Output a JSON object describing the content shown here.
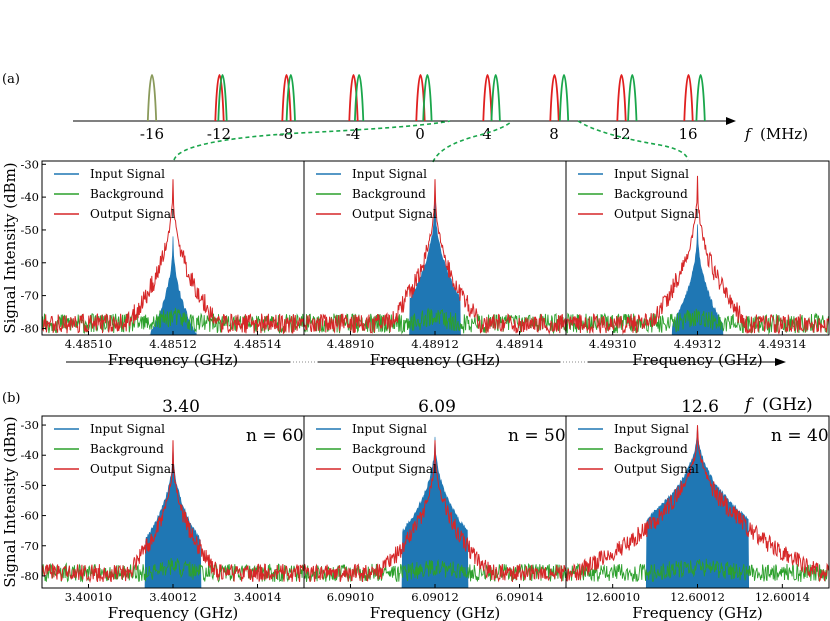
{
  "figure": {
    "panel_a_label": "(a)",
    "panel_b_label": "(b)",
    "y_axis_title": "Signal Intensity (dBm)",
    "x_axis_title": "Frequency (GHz)"
  },
  "chart_data": [
    {
      "id": "comb-a",
      "type": "comb",
      "axis_label": "f",
      "axis_unit": "(MHz)",
      "ticks": [
        "-16",
        "-12",
        "-8",
        "-4",
        "0",
        "4",
        "8",
        "12",
        "16"
      ],
      "tick_values": [
        -16,
        -12,
        -8,
        -4,
        0,
        4,
        8,
        12,
        16
      ],
      "red_peaks": [
        -12,
        -8,
        -4,
        0,
        4,
        8,
        12,
        16
      ],
      "green_peaks": [
        -12,
        -8,
        -4,
        0,
        4,
        8,
        12,
        16
      ],
      "olive_peaks": [
        -16
      ],
      "colors": {
        "red": "#e02020",
        "green": "#1aa64b",
        "olive": "#8a9a5b",
        "link": "#1aa64b"
      }
    },
    {
      "id": "a1",
      "type": "line",
      "title": "",
      "xlabel": "Frequency (GHz)",
      "ylabel": "Signal Intensity (dBm)",
      "xticks": [
        "4.48510",
        "4.48512",
        "4.48514"
      ],
      "xtick_values": [
        4.4851,
        4.48512,
        4.48514
      ],
      "xlim": [
        4.485089,
        4.485151
      ],
      "ylim": [
        -82,
        -29
      ],
      "yticks": [
        -30,
        -40,
        -50,
        -60,
        -70,
        -80
      ],
      "center": 4.48512,
      "peak_input": -52,
      "peak_output": -34,
      "bg_level": -78.5,
      "bw_w": 5.5e-06,
      "annotation": "",
      "series": [
        {
          "name": "Input Signal",
          "color": "#1f77b4"
        },
        {
          "name": "Background",
          "color": "#2ca02c"
        },
        {
          "name": "Output Signal",
          "color": "#d62728"
        }
      ]
    },
    {
      "id": "a2",
      "type": "line",
      "title": "",
      "xlabel": "Frequency (GHz)",
      "ylabel": "",
      "xticks": [
        "4.48910",
        "4.48912",
        "4.48914"
      ],
      "xtick_values": [
        4.4891,
        4.48912,
        4.48914
      ],
      "xlim": [
        4.489089,
        4.489151
      ],
      "ylim": [
        -82,
        -29
      ],
      "yticks": [],
      "center": 4.48912,
      "peak_input": -40,
      "peak_output": -34,
      "bg_level": -78.5,
      "bw_w": 5.5e-06,
      "annotation": "",
      "series": [
        {
          "name": "Input Signal",
          "color": "#1f77b4"
        },
        {
          "name": "Background",
          "color": "#2ca02c"
        },
        {
          "name": "Output Signal",
          "color": "#d62728"
        }
      ]
    },
    {
      "id": "a3",
      "type": "line",
      "title": "",
      "xlabel": "Frequency (GHz)",
      "ylabel": "",
      "xticks": [
        "4.49310",
        "4.49312",
        "4.49314"
      ],
      "xtick_values": [
        4.4931,
        4.49312,
        4.49314
      ],
      "xlim": [
        4.493089,
        4.493151
      ],
      "ylim": [
        -82,
        -29
      ],
      "yticks": [],
      "center": 4.49312,
      "peak_input": -48,
      "peak_output": -33,
      "bg_level": -78.5,
      "bw_w": 5.5e-06,
      "annotation": "",
      "series": [
        {
          "name": "Input Signal",
          "color": "#1f77b4"
        },
        {
          "name": "Background",
          "color": "#2ca02c"
        },
        {
          "name": "Output Signal",
          "color": "#d62728"
        }
      ]
    },
    {
      "id": "axis-b",
      "type": "axis",
      "axis_label": "f",
      "axis_unit": "(GHz)",
      "ticks": [
        "3.40",
        "6.09",
        "12.6"
      ]
    },
    {
      "id": "b1",
      "type": "line",
      "title": "",
      "xlabel": "Frequency (GHz)",
      "ylabel": "Signal Intensity (dBm)",
      "xticks": [
        "3.40010",
        "3.40012",
        "3.40014"
      ],
      "xtick_values": [
        3.4001,
        3.40012,
        3.40014
      ],
      "xlim": [
        3.400089,
        3.400151
      ],
      "ylim": [
        -84,
        -27
      ],
      "yticks": [
        -30,
        -40,
        -50,
        -60,
        -70,
        -80
      ],
      "center": 3.40012,
      "peak_input": -37,
      "peak_output": -36,
      "bg_level": -79,
      "bw_w": 6e-06,
      "annotation": "n = 60",
      "series": [
        {
          "name": "Input Signal",
          "color": "#1f77b4"
        },
        {
          "name": "Background",
          "color": "#2ca02c"
        },
        {
          "name": "Output Signal",
          "color": "#d62728"
        }
      ]
    },
    {
      "id": "b2",
      "type": "line",
      "title": "",
      "xlabel": "Frequency (GHz)",
      "ylabel": "",
      "xticks": [
        "6.09010",
        "6.09012",
        "6.09014"
      ],
      "xtick_values": [
        6.0901,
        6.09012,
        6.09014
      ],
      "xlim": [
        6.090089,
        6.090151
      ],
      "ylim": [
        -84,
        -27
      ],
      "yticks": [],
      "center": 6.09012,
      "peak_input": -34,
      "peak_output": -35,
      "bg_level": -79,
      "bw_w": 7e-06,
      "annotation": "n = 50",
      "series": [
        {
          "name": "Input Signal",
          "color": "#1f77b4"
        },
        {
          "name": "Background",
          "color": "#2ca02c"
        },
        {
          "name": "Output Signal",
          "color": "#d62728"
        }
      ]
    },
    {
      "id": "b3",
      "type": "line",
      "title": "",
      "xlabel": "Frequency (GHz)",
      "ylabel": "",
      "xticks": [
        "12.60010",
        "12.60012",
        "12.60014"
      ],
      "xtick_values": [
        12.6001,
        12.60012,
        12.60014
      ],
      "xlim": [
        12.600089,
        12.600151
      ],
      "ylim": [
        -84,
        -27
      ],
      "yticks": [],
      "center": 12.60012,
      "peak_input": -30,
      "peak_output": -29,
      "bg_level": -79,
      "bw_w": 1.1e-05,
      "annotation": "n = 40",
      "series": [
        {
          "name": "Input Signal",
          "color": "#1f77b4"
        },
        {
          "name": "Background",
          "color": "#2ca02c"
        },
        {
          "name": "Output Signal",
          "color": "#d62728"
        }
      ]
    }
  ]
}
